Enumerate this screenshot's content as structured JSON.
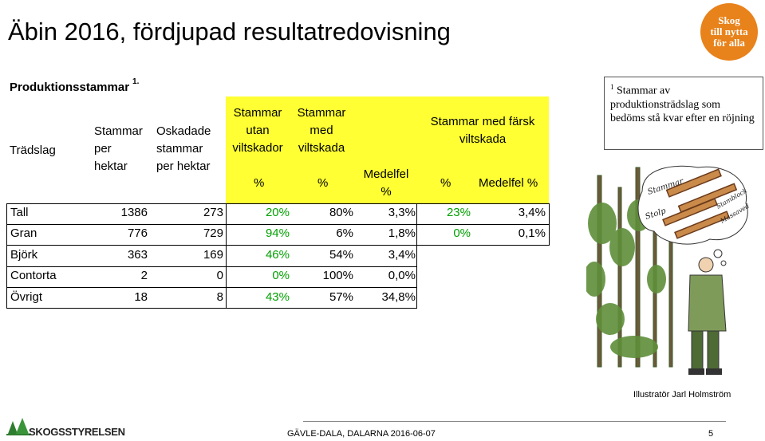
{
  "slide": {
    "title": "Äbin 2016, fördjupad resultatredovisning",
    "logo_lines": [
      "Skog",
      "till nytta",
      "för alla"
    ],
    "subheading": "Produktionsstammar",
    "subheading_sup": "1."
  },
  "table": {
    "headers": {
      "col0": "Trädslag",
      "col1": [
        "Stammar",
        "per",
        "hektar"
      ],
      "col2": [
        "Oskadade",
        "stammar",
        "per hektar"
      ],
      "col3": [
        "Stammar",
        "utan",
        "viltskador"
      ],
      "col4": [
        "Stammar",
        "med",
        "viltskada"
      ],
      "col3_sub": "%",
      "col4_sub": "%",
      "col5_sub": [
        "Medelfel",
        "%"
      ],
      "group": [
        "Stammar med färsk",
        "viltskada"
      ],
      "col6_sub": "%",
      "col7_sub": "Medelfel %"
    },
    "rows": [
      {
        "species": "Tall",
        "per_ha": "1386",
        "unharmed": "273",
        "without": "20%",
        "with": "80%",
        "se": "3,3%",
        "fresh": "23%",
        "fresh_se": "3,4%"
      },
      {
        "species": "Gran",
        "per_ha": "776",
        "unharmed": "729",
        "without": "94%",
        "with": "6%",
        "se": "1,8%",
        "fresh": "0%",
        "fresh_se": "0,1%"
      },
      {
        "species": "Björk",
        "per_ha": "363",
        "unharmed": "169",
        "without": "46%",
        "with": "54%",
        "se": "3,4%",
        "fresh": "",
        "fresh_se": ""
      },
      {
        "species": "Contorta",
        "per_ha": "2",
        "unharmed": "0",
        "without": "0%",
        "with": "100%",
        "se": "0,0%",
        "fresh": "",
        "fresh_se": ""
      },
      {
        "species": "Övrigt",
        "per_ha": "18",
        "unharmed": "8",
        "without": "43%",
        "with": "57%",
        "se": "34,8%",
        "fresh": "",
        "fresh_se": ""
      }
    ]
  },
  "note": {
    "sup": "1",
    "text": "Stammar av produktionsträdslag som bedöms stå kvar efter en röjning"
  },
  "illustration": {
    "labels": [
      "Stammar",
      "Stolp",
      "Stamblock",
      "Massaved"
    ]
  },
  "credit": "Illustratör Jarl Holmström",
  "footer": {
    "brand": "SKOGSSTYRELSEN",
    "text": "GÄVLE-DALA, DALARNA 2016-06-07",
    "page": "5"
  },
  "colors": {
    "highlight": "#ffff33",
    "green_value": "#00a000",
    "logo": "#e8821a"
  }
}
